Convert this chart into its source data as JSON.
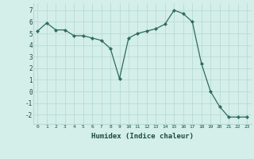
{
  "x": [
    0,
    1,
    2,
    3,
    4,
    5,
    6,
    7,
    8,
    9,
    10,
    11,
    12,
    13,
    14,
    15,
    16,
    17,
    18,
    19,
    20,
    21,
    22,
    23
  ],
  "y": [
    5.2,
    5.9,
    5.3,
    5.3,
    4.8,
    4.8,
    4.6,
    4.4,
    3.7,
    1.1,
    4.6,
    5.0,
    5.2,
    5.4,
    5.8,
    7.0,
    6.7,
    6.0,
    2.4,
    0.0,
    -1.3,
    -2.2,
    -2.2,
    -2.2
  ],
  "line_color": "#2e6b5e",
  "marker_color": "#2e6b5e",
  "bg_color": "#d4eeea",
  "grid_color": "#b8dbd6",
  "xlabel": "Humidex (Indice chaleur)",
  "xlabel_color": "#1a4a40",
  "yticks": [
    -2,
    -1,
    0,
    1,
    2,
    3,
    4,
    5,
    6,
    7
  ],
  "xticks": [
    0,
    1,
    2,
    3,
    4,
    5,
    6,
    7,
    8,
    9,
    10,
    11,
    12,
    13,
    14,
    15,
    16,
    17,
    18,
    19,
    20,
    21,
    22,
    23
  ],
  "ylim": [
    -2.8,
    7.6
  ],
  "xlim": [
    -0.5,
    23.5
  ]
}
